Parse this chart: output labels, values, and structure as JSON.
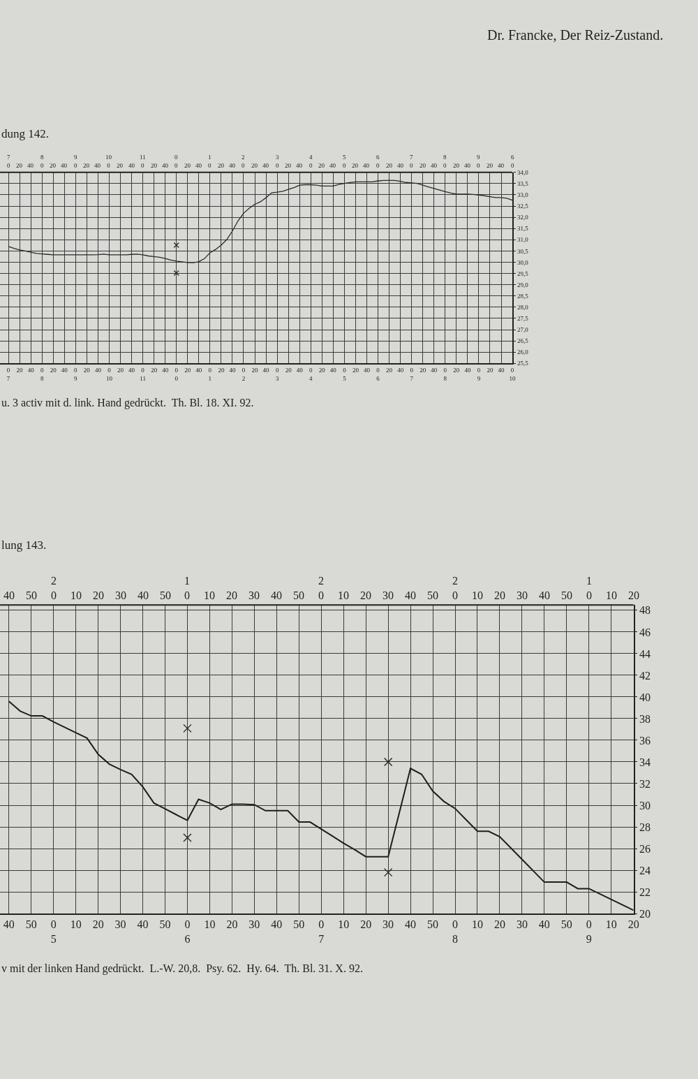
{
  "chart_data": [
    {
      "type": "line",
      "title": "dung 142.",
      "annotations": [
        "Dr. Francke, Der Reiz-Zustand.",
        "7\n0",
        "20",
        "40",
        "8\n0",
        "20",
        "40",
        "9\n0",
        "20",
        "40",
        "10\n0",
        "20",
        "40",
        "11\n0",
        "20",
        "40",
        "0\n0",
        "20",
        "40",
        "1\n0",
        "20",
        "40",
        "2\n0",
        "20",
        "40",
        "3\n0",
        "20",
        "40",
        "4\n0",
        "20",
        "40",
        "5\n0",
        "20",
        "40",
        "6\n0",
        "20",
        "40",
        "7\n0",
        "20",
        "40",
        "8\n0",
        "20",
        "40",
        "9\n0",
        "20",
        "40",
        "6\n0",
        "u. 3 activ mit d. link. Hand gedrückt.  Th. Bl. 18. XI. 92."
      ],
      "categories": [
        "0\n7",
        null,
        "20",
        null,
        "40",
        null,
        "0\n8",
        null,
        "20",
        null,
        "40",
        null,
        "0\n9",
        null,
        "20",
        null,
        "40",
        null,
        "0\n10",
        null,
        "20",
        null,
        "40",
        null,
        "0\n11",
        null,
        "20",
        null,
        "40",
        null,
        "0\n0",
        null,
        "20",
        null,
        "40",
        null,
        "0\n1",
        null,
        "20",
        null,
        "40",
        null,
        "0\n2",
        null,
        "20",
        null,
        "40",
        null,
        "0\n3",
        null,
        "20",
        null,
        "40",
        null,
        "0\n4",
        null,
        "20",
        null,
        "40",
        null,
        "0\n5",
        null,
        "20",
        null,
        "40",
        null,
        "0\n6",
        null,
        "20",
        null,
        "40",
        null,
        "0\n7",
        null,
        "20",
        null,
        "40",
        null,
        "0\n8",
        null,
        "20",
        null,
        "40",
        null,
        "0\n9",
        null,
        "20",
        null,
        "40",
        null,
        "0\n10"
      ],
      "series": [
        {
          "color": "#2a2a2a",
          "values": [
            30.7,
            30.62,
            30.55,
            30.5,
            30.45,
            30.39,
            30.37,
            30.35,
            30.33,
            30.33,
            30.33,
            30.33,
            30.33,
            30.33,
            30.33,
            30.33,
            30.34,
            30.36,
            30.33,
            30.33,
            30.33,
            30.33,
            30.35,
            30.36,
            30.33,
            30.28,
            30.25,
            30.22,
            30.17,
            30.1,
            30.05,
            30.02,
            29.99,
            29.98,
            30.02,
            30.16,
            30.42,
            30.57,
            30.76,
            31.01,
            31.39,
            31.84,
            32.18,
            32.4,
            32.58,
            32.69,
            32.87,
            33.09,
            33.12,
            33.16,
            33.24,
            33.32,
            33.43,
            33.45,
            33.45,
            33.43,
            33.39,
            33.39,
            33.39,
            33.46,
            33.51,
            33.55,
            33.58,
            33.58,
            33.58,
            33.58,
            33.62,
            33.64,
            33.64,
            33.64,
            33.6,
            33.55,
            33.53,
            33.51,
            33.43,
            33.35,
            33.28,
            33.21,
            33.14,
            33.08,
            33.03,
            33.03,
            33.03,
            33.02,
            32.99,
            32.96,
            32.92,
            32.88,
            32.88,
            32.85,
            32.76
          ]
        },
        {
          "type": "scatter",
          "marker": "cross",
          "color": "#2a2a2a",
          "values": [
            null,
            null,
            null,
            null,
            null,
            null,
            null,
            null,
            null,
            null,
            null,
            null,
            null,
            null,
            null,
            null,
            null,
            null,
            null,
            null,
            null,
            null,
            null,
            null,
            null,
            null,
            null,
            null,
            null,
            null,
            30.76,
            null,
            null,
            null,
            null,
            null,
            null,
            null,
            null,
            null,
            null,
            null,
            null,
            null,
            null,
            null,
            null,
            null,
            null,
            null,
            null,
            null,
            null,
            null,
            null,
            null,
            null,
            null,
            null,
            null,
            null,
            null,
            null,
            null,
            null,
            null,
            null,
            null,
            null,
            null,
            null,
            null,
            null,
            null,
            null,
            null,
            null,
            null,
            null,
            null,
            null,
            null,
            null,
            null,
            null,
            null,
            null,
            null,
            null,
            null,
            null
          ]
        },
        {
          "type": "scatter",
          "marker": "cross",
          "color": "#2a2a2a",
          "values": [
            null,
            null,
            null,
            null,
            null,
            null,
            null,
            null,
            null,
            null,
            null,
            null,
            null,
            null,
            null,
            null,
            null,
            null,
            null,
            null,
            null,
            null,
            null,
            null,
            null,
            null,
            null,
            null,
            null,
            null,
            29.52,
            null,
            null,
            null,
            null,
            null,
            null,
            null,
            null,
            null,
            null,
            null,
            null,
            null,
            null,
            null,
            null,
            null,
            null,
            null,
            null,
            null,
            null,
            null,
            null,
            null,
            null,
            null,
            null,
            null,
            null,
            null,
            null,
            null,
            null,
            null,
            null,
            null,
            null,
            null,
            null,
            null,
            null,
            null,
            null,
            null,
            null,
            null,
            null,
            null,
            null,
            null,
            null,
            null,
            null,
            null,
            null,
            null,
            null,
            null,
            null
          ]
        }
      ],
      "ylim": [
        25.5,
        34.0
      ],
      "yticks": [
        {
          "value": 25.5,
          "label": "25,5"
        },
        {
          "value": 26.0,
          "label": "26,0"
        },
        {
          "value": 26.5,
          "label": "26,5"
        },
        {
          "value": 27.0,
          "label": "27,0"
        },
        {
          "value": 27.5,
          "label": "27,5"
        },
        {
          "value": 28.0,
          "label": "28,0"
        },
        {
          "value": 28.5,
          "label": "28,5"
        },
        {
          "value": 29.0,
          "label": "29,0"
        },
        {
          "value": 29.5,
          "label": "29,5"
        },
        {
          "value": 30.0,
          "label": "30,0"
        },
        {
          "value": 30.5,
          "label": "30,5"
        },
        {
          "value": 31.0,
          "label": "31,0"
        },
        {
          "value": 31.5,
          "label": "31,5"
        },
        {
          "value": 32.0,
          "label": "32,0"
        },
        {
          "value": 32.5,
          "label": "32,5"
        },
        {
          "value": 33.0,
          "label": "33,0"
        },
        {
          "value": 33.5,
          "label": "33,5"
        },
        {
          "value": 34.0,
          "label": "34,0"
        }
      ],
      "grid": true
    },
    {
      "type": "line",
      "title": "lung 143.",
      "annotations": [
        "40",
        "50",
        "2\n0",
        "10",
        "20",
        "30",
        "40",
        "50",
        "1\n0",
        "10",
        "20",
        "30",
        "40",
        "50",
        "2\n0",
        "10",
        "20",
        "30",
        "40",
        "50",
        "2\n0",
        "10",
        "20",
        "30",
        "40",
        "50",
        "1\n0",
        "10",
        "20",
        "v mit der linken Hand gedrückt.  L.-W. 20,8.  Psy. 62.  Hy. 64.  Th. Bl. 31. X. 92."
      ],
      "categories": [
        "40",
        null,
        "50",
        null,
        "0\n5",
        null,
        "10",
        null,
        "20",
        null,
        "30",
        null,
        "40",
        null,
        "50",
        null,
        "0\n6",
        null,
        "10",
        null,
        "20",
        null,
        "30",
        null,
        "40",
        null,
        "50",
        null,
        "0\n7",
        null,
        "10",
        null,
        "20",
        null,
        "30",
        null,
        "40",
        null,
        "50",
        null,
        "0\n8",
        null,
        "10",
        null,
        "20",
        null,
        "30",
        null,
        "40",
        null,
        "50",
        null,
        "0\n9",
        null,
        "10",
        null,
        "20"
      ],
      "series": [
        {
          "color": "#1e1e1e",
          "values": [
            39.6,
            38.7,
            38.25,
            38.25,
            37.7,
            37.2,
            36.7,
            36.2,
            34.7,
            33.8,
            33.3,
            32.85,
            31.7,
            30.2,
            29.67,
            29.13,
            28.6,
            30.55,
            30.2,
            29.6,
            30.1,
            30.1,
            30.05,
            29.5,
            29.5,
            29.5,
            28.45,
            28.45,
            27.8,
            27.15,
            26.5,
            25.9,
            25.25,
            25.25,
            25.25,
            29.3,
            33.4,
            32.85,
            31.3,
            30.35,
            29.7,
            28.65,
            27.6,
            27.6,
            27.1,
            26.05,
            25.0,
            23.95,
            22.9,
            22.9,
            22.9,
            22.3,
            22.3,
            21.8,
            21.3,
            20.8,
            20.3
          ]
        },
        {
          "type": "scatter",
          "marker": "cross",
          "color": "#1e1e1e",
          "values": [
            null,
            null,
            null,
            null,
            null,
            null,
            null,
            null,
            null,
            null,
            null,
            null,
            null,
            null,
            null,
            null,
            37.1,
            null,
            null,
            null,
            null,
            null,
            null,
            null,
            null,
            null,
            null,
            null,
            null,
            null,
            null,
            null,
            null,
            null,
            34.0,
            null,
            null,
            null,
            null,
            null,
            null,
            null,
            null,
            null,
            null,
            null,
            null,
            null,
            null,
            null,
            null,
            null,
            null,
            null,
            null,
            null,
            null
          ]
        },
        {
          "type": "scatter",
          "marker": "cross",
          "color": "#1e1e1e",
          "values": [
            null,
            null,
            null,
            null,
            null,
            null,
            null,
            null,
            null,
            null,
            null,
            null,
            null,
            null,
            null,
            null,
            27.0,
            null,
            null,
            null,
            null,
            null,
            null,
            null,
            null,
            null,
            null,
            null,
            null,
            null,
            null,
            null,
            null,
            null,
            23.8,
            null,
            null,
            null,
            null,
            null,
            null,
            null,
            null,
            null,
            null,
            null,
            null,
            null,
            null,
            null,
            null,
            null,
            null,
            null,
            null,
            null,
            null
          ]
        }
      ],
      "ylim": [
        20,
        48.5
      ],
      "yticks": [
        20,
        22,
        24,
        26,
        28,
        30,
        32,
        34,
        36,
        38,
        40,
        42,
        44,
        46,
        48
      ],
      "grid": true
    }
  ]
}
